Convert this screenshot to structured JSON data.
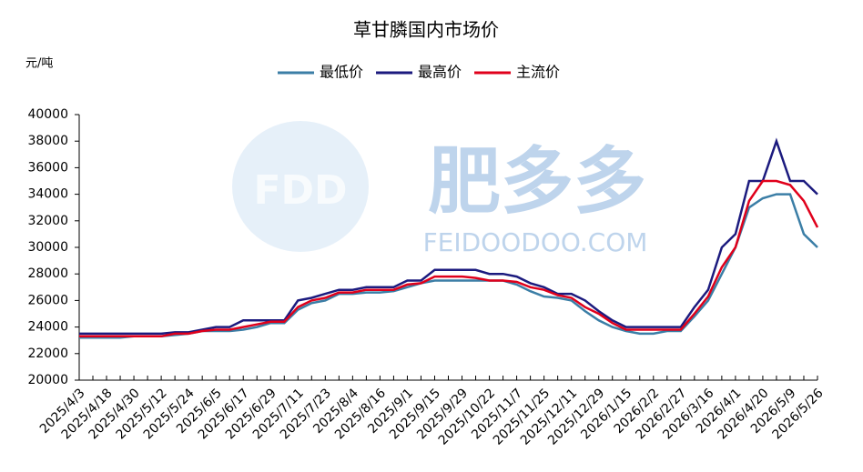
{
  "chart_data": {
    "type": "line",
    "title": "草甘膦国内市场价",
    "y_label": "元/吨",
    "watermark": {
      "logo": "FDD",
      "brand": "肥多多",
      "site": "FEIDOODOO.COM"
    },
    "categories": [
      "2025/4/3",
      null,
      "2025/4/18",
      null,
      "2025/4/30",
      null,
      "2025/5/12",
      null,
      "2025/5/24",
      null,
      "2025/6/5",
      null,
      "2025/6/17",
      null,
      "2025/6/29",
      null,
      "2025/7/11",
      null,
      "2025/7/23",
      null,
      "2025/8/4",
      null,
      "2025/8/16",
      null,
      "2025/9/1",
      null,
      "2025/9/15",
      null,
      "2025/9/29",
      null,
      "2025/10/22",
      null,
      "2025/11/7",
      null,
      "2025/11/25",
      null,
      "2025/12/11",
      null,
      "2025/12/29",
      null,
      "2026/1/15",
      null,
      "2026/2/2",
      null,
      "2026/2/27",
      null,
      "2026/3/16",
      null,
      "2026/4/1",
      null,
      "2026/4/20",
      null,
      "2026/5/9",
      null,
      "2026/5/26"
    ],
    "series": [
      {
        "name": "最低价",
        "color": "#3b7ea6",
        "values": [
          23200,
          23200,
          23200,
          23200,
          23300,
          23300,
          23300,
          23400,
          23500,
          23700,
          23700,
          23700,
          23800,
          24000,
          24300,
          24300,
          25300,
          25800,
          26000,
          26500,
          26500,
          26600,
          26600,
          26700,
          27000,
          27300,
          27500,
          27500,
          27500,
          27500,
          27500,
          27500,
          27200,
          26700,
          26300,
          26200,
          26000,
          25200,
          24500,
          24000,
          23700,
          23500,
          23500,
          23700,
          23700,
          24800,
          26000,
          28000,
          30000,
          33000,
          33700,
          34000,
          34000,
          31000,
          30000
        ]
      },
      {
        "name": "最高价",
        "color": "#1b1a7e",
        "values": [
          23500,
          23500,
          23500,
          23500,
          23500,
          23500,
          23500,
          23600,
          23600,
          23800,
          24000,
          24000,
          24500,
          24500,
          24500,
          24500,
          26000,
          26200,
          26500,
          26800,
          26800,
          27000,
          27000,
          27000,
          27500,
          27500,
          28300,
          28300,
          28300,
          28300,
          28000,
          28000,
          27800,
          27300,
          27000,
          26500,
          26500,
          26000,
          25200,
          24500,
          24000,
          24000,
          24000,
          24000,
          24000,
          25500,
          26800,
          30000,
          31000,
          35000,
          35000,
          38000,
          35000,
          35000,
          34000
        ]
      },
      {
        "name": "主流价",
        "color": "#e0001b",
        "values": [
          23300,
          23300,
          23300,
          23300,
          23300,
          23300,
          23300,
          23500,
          23500,
          23700,
          23800,
          23800,
          24000,
          24200,
          24400,
          24400,
          25500,
          26000,
          26200,
          26600,
          26600,
          26800,
          26800,
          26800,
          27200,
          27300,
          27800,
          27800,
          27800,
          27700,
          27500,
          27500,
          27400,
          27000,
          26800,
          26400,
          26200,
          25500,
          25000,
          24300,
          23800,
          23800,
          23800,
          23800,
          23800,
          25000,
          26300,
          28500,
          30000,
          33500,
          35000,
          35000,
          34700,
          33500,
          31500
        ]
      }
    ],
    "ylim": [
      20000,
      40000
    ],
    "yticks": [
      20000,
      22000,
      24000,
      26000,
      28000,
      30000,
      32000,
      34000,
      36000,
      38000,
      40000
    ],
    "legend": "top",
    "grid": false
  }
}
